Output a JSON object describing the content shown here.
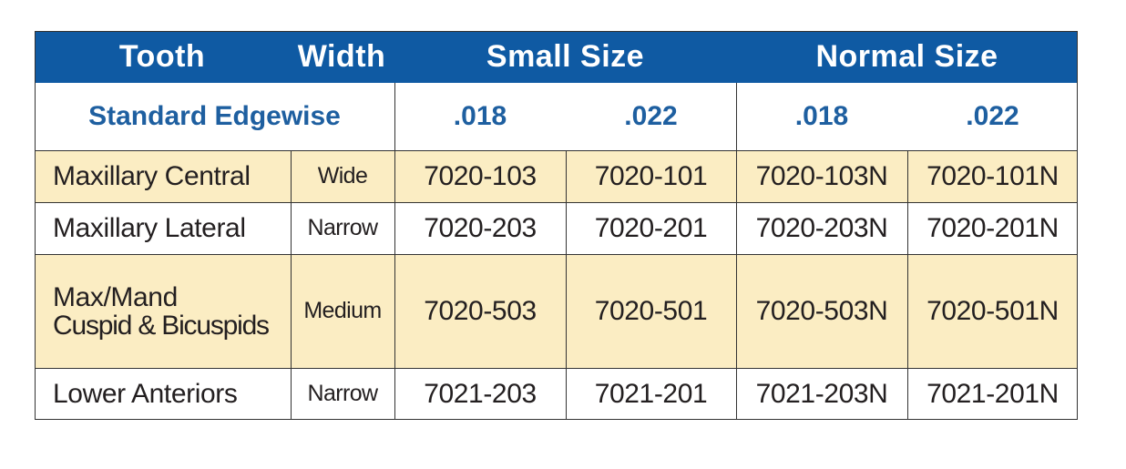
{
  "header": {
    "tooth": "Tooth",
    "width": "Width",
    "small_size": "Small Size",
    "normal_size": "Normal Size"
  },
  "subheader": {
    "category": "Standard Edgewise",
    "small_018": ".018",
    "small_022": ".022",
    "normal_018": ".018",
    "normal_022": ".022"
  },
  "rows": [
    {
      "tooth": "Maxillary Central",
      "width": "Wide",
      "small_018": "7020-103",
      "small_022": "7020-101",
      "normal_018": "7020-103N",
      "normal_022": "7020-101N"
    },
    {
      "tooth": "Maxillary Lateral",
      "width": "Narrow",
      "small_018": "7020-203",
      "small_022": "7020-201",
      "normal_018": "7020-203N",
      "normal_022": "7020-201N"
    },
    {
      "tooth_line1": "Max/Mand",
      "tooth_line2": "Cuspid & Bicuspids",
      "width": "Medium",
      "small_018": "7020-503",
      "small_022": "7020-501",
      "normal_018": "7020-503N",
      "normal_022": "7020-501N"
    },
    {
      "tooth": "Lower Anteriors",
      "width": "Narrow",
      "small_018": "7021-203",
      "small_022": "7021-201",
      "normal_018": "7021-203N",
      "normal_022": "7021-201N"
    }
  ],
  "colors": {
    "header_bg": "#0f5aa3",
    "subheader_text": "#1e5fa0",
    "row_highlight": "#fbedc3"
  }
}
